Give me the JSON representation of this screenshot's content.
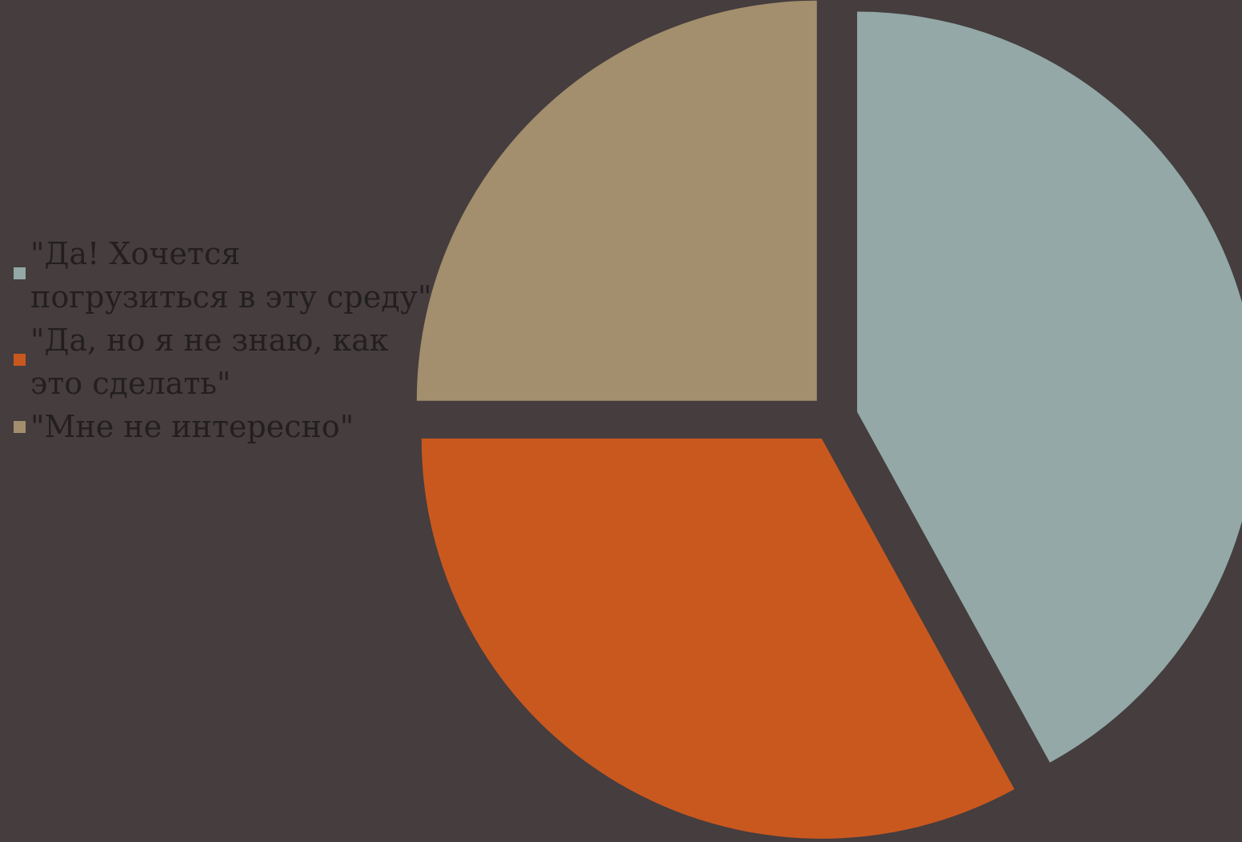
{
  "chart_data": {
    "type": "pie",
    "categories": [
      "\"Да! Хочется погрузиться в эту среду\"",
      "\"Да, но я не знаю, как это сделать\"",
      "\"Мне не интересно\""
    ],
    "values": [
      42,
      33,
      25
    ],
    "colors": [
      "#93A8A7",
      "#C9581F",
      "#A38E6D"
    ],
    "background": "#453D3E",
    "legend_position": "left",
    "exploded": true
  }
}
